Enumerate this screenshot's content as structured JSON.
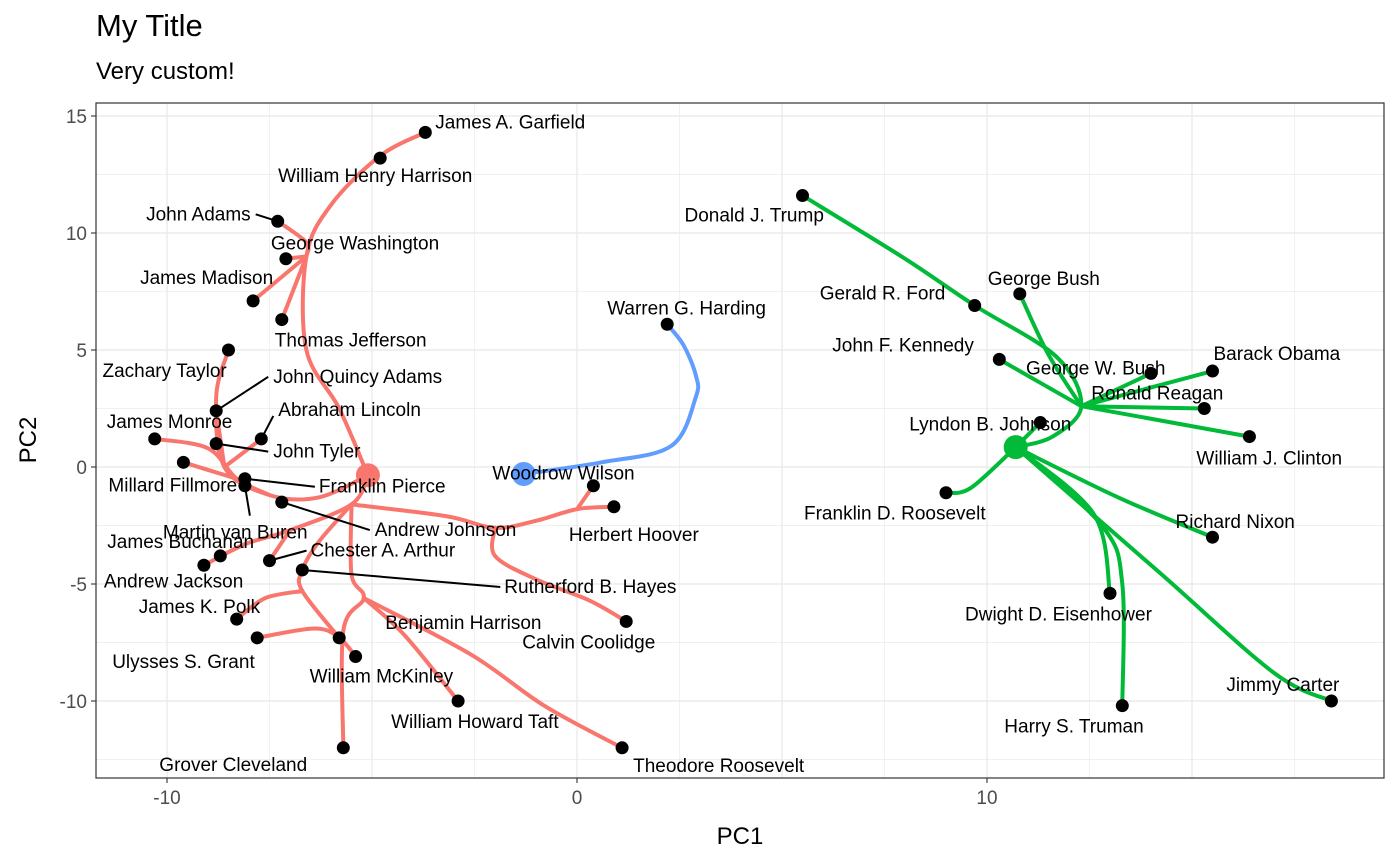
{
  "chart_data": {
    "type": "scatter",
    "title": "My Title",
    "subtitle": "Very custom!",
    "xlabel": "PC1",
    "ylabel": "PC2",
    "xlim": [
      -11.9,
      19.5
    ],
    "ylim": [
      -13.3,
      15.8
    ],
    "xticks": [
      -10,
      0,
      10
    ],
    "yticks": [
      -10,
      -5,
      0,
      5,
      10,
      15
    ],
    "grid": true,
    "legend": "none",
    "cluster_colors": {
      "red": "#F8766D",
      "green": "#00BA38",
      "blue": "#619CFF"
    },
    "cluster_centers": [
      {
        "cluster": "red",
        "x": -5.1,
        "y": -0.35
      },
      {
        "cluster": "blue",
        "x": -1.3,
        "y": -0.3
      },
      {
        "cluster": "green",
        "x": 10.7,
        "y": 0.85
      }
    ],
    "points": [
      {
        "name": "James A. Garfield",
        "x": -3.7,
        "y": 14.3
      },
      {
        "name": "William Henry Harrison",
        "x": -4.8,
        "y": 13.2
      },
      {
        "name": "John Adams",
        "x": -7.3,
        "y": 10.5
      },
      {
        "name": "George Washington",
        "x": -7.1,
        "y": 8.9
      },
      {
        "name": "James Madison",
        "x": -7.9,
        "y": 7.1
      },
      {
        "name": "Thomas Jefferson",
        "x": -7.2,
        "y": 6.3
      },
      {
        "name": "Zachary Taylor",
        "x": -8.5,
        "y": 5.0
      },
      {
        "name": "John Quincy Adams",
        "x": -8.8,
        "y": 2.4
      },
      {
        "name": "Abraham Lincoln",
        "x": -7.7,
        "y": 1.2
      },
      {
        "name": "James Monroe",
        "x": -10.3,
        "y": 1.2
      },
      {
        "name": "John Tyler",
        "x": -8.8,
        "y": 1.0
      },
      {
        "name": "Millard Fillmore",
        "x": -9.6,
        "y": 0.2
      },
      {
        "name": "Franklin Pierce",
        "x": -8.1,
        "y": -0.5
      },
      {
        "name": "Martin van Buren",
        "x": -8.1,
        "y": -0.8
      },
      {
        "name": "Andrew Johnson",
        "x": -7.2,
        "y": -1.5
      },
      {
        "name": "James Buchanan",
        "x": -8.7,
        "y": -3.8
      },
      {
        "name": "Andrew Jackson",
        "x": -9.1,
        "y": -4.2
      },
      {
        "name": "Chester A. Arthur",
        "x": -7.5,
        "y": -4.0
      },
      {
        "name": "Rutherford B. Hayes",
        "x": -6.7,
        "y": -4.4
      },
      {
        "name": "James K. Polk",
        "x": -8.3,
        "y": -6.5
      },
      {
        "name": "Ulysses S. Grant",
        "x": -7.8,
        "y": -7.3
      },
      {
        "name": "Benjamin Harrison",
        "x": -5.8,
        "y": -7.3
      },
      {
        "name": "William McKinley",
        "x": -5.4,
        "y": -8.1
      },
      {
        "name": "William Howard Taft",
        "x": -2.9,
        "y": -10.0
      },
      {
        "name": "Grover Cleveland",
        "x": -5.7,
        "y": -12.0
      },
      {
        "name": "Theodore Roosevelt",
        "x": 1.1,
        "y": -12.0
      },
      {
        "name": "Calvin Coolidge",
        "x": 1.2,
        "y": -6.6
      },
      {
        "name": "Herbert Hoover",
        "x": 0.9,
        "y": -1.7
      },
      {
        "name": "Woodrow Wilson",
        "x": 0.4,
        "y": -0.8
      },
      {
        "name": "Warren G. Harding",
        "x": 2.2,
        "y": 6.1
      },
      {
        "name": "Donald J. Trump",
        "x": 5.5,
        "y": 11.6
      },
      {
        "name": "Gerald R. Ford",
        "x": 9.7,
        "y": 6.9
      },
      {
        "name": "George Bush",
        "x": 10.8,
        "y": 7.4
      },
      {
        "name": "John F. Kennedy",
        "x": 10.3,
        "y": 4.6
      },
      {
        "name": "George W. Bush",
        "x": 14.0,
        "y": 4.0
      },
      {
        "name": "Barack Obama",
        "x": 15.5,
        "y": 4.1
      },
      {
        "name": "Ronald Reagan",
        "x": 15.3,
        "y": 2.5
      },
      {
        "name": "Lyndon B. Johnson",
        "x": 11.3,
        "y": 1.9
      },
      {
        "name": "William J. Clinton",
        "x": 16.4,
        "y": 1.3
      },
      {
        "name": "Franklin D. Roosevelt",
        "x": 9.0,
        "y": -1.1
      },
      {
        "name": "Richard Nixon",
        "x": 15.5,
        "y": -3.0
      },
      {
        "name": "Dwight D. Eisenhower",
        "x": 13.0,
        "y": -5.4
      },
      {
        "name": "Harry S. Truman",
        "x": 13.3,
        "y": -10.2
      },
      {
        "name": "Jimmy Carter",
        "x": 18.4,
        "y": -10.0
      }
    ],
    "trajectories": [
      {
        "cluster": "red",
        "points": [
          [
            -3.7,
            14.3
          ],
          [
            -4.8,
            13.3
          ],
          [
            -6.0,
            11.2
          ],
          [
            -6.6,
            9.0
          ],
          [
            -6.6,
            5.0
          ],
          [
            -5.8,
            2.5
          ],
          [
            -5.1,
            -0.35
          ]
        ]
      },
      {
        "cluster": "red",
        "points": [
          [
            -7.3,
            10.5
          ],
          [
            -6.6,
            9.6
          ],
          [
            -6.6,
            9.0
          ]
        ]
      },
      {
        "cluster": "red",
        "points": [
          [
            -7.1,
            8.9
          ],
          [
            -6.6,
            9.0
          ]
        ]
      },
      {
        "cluster": "red",
        "points": [
          [
            -7.9,
            7.1
          ],
          [
            -6.6,
            9.0
          ]
        ]
      },
      {
        "cluster": "red",
        "points": [
          [
            -7.2,
            6.3
          ],
          [
            -6.6,
            9.0
          ]
        ]
      },
      {
        "cluster": "red",
        "points": [
          [
            -8.5,
            5.0
          ],
          [
            -8.8,
            3.0
          ],
          [
            -8.6,
            0.0
          ],
          [
            -7.5,
            -1.2
          ],
          [
            -6.3,
            -1.3
          ],
          [
            -5.1,
            -0.35
          ]
        ]
      },
      {
        "cluster": "red",
        "points": [
          [
            -8.8,
            2.4
          ],
          [
            -8.6,
            0.0
          ]
        ]
      },
      {
        "cluster": "red",
        "points": [
          [
            -7.7,
            1.2
          ],
          [
            -8.6,
            0.0
          ]
        ]
      },
      {
        "cluster": "red",
        "points": [
          [
            -10.3,
            1.2
          ],
          [
            -9.0,
            0.8
          ],
          [
            -8.3,
            -0.5
          ],
          [
            -7.5,
            -1.2
          ]
        ]
      },
      {
        "cluster": "red",
        "points": [
          [
            -9.6,
            0.2
          ],
          [
            -8.3,
            -0.5
          ]
        ]
      },
      {
        "cluster": "red",
        "points": [
          [
            -8.8,
            1.0
          ],
          [
            -8.6,
            0.0
          ]
        ]
      },
      {
        "cluster": "red",
        "points": [
          [
            -5.1,
            -0.35
          ],
          [
            -5.5,
            -1.6
          ],
          [
            -7.0,
            -2.7
          ],
          [
            -8.1,
            -3.3
          ],
          [
            -9.1,
            -4.2
          ]
        ]
      },
      {
        "cluster": "red",
        "points": [
          [
            -8.7,
            -3.8
          ],
          [
            -8.1,
            -3.3
          ]
        ]
      },
      {
        "cluster": "red",
        "points": [
          [
            -7.5,
            -4.0
          ],
          [
            -7.0,
            -2.7
          ]
        ]
      },
      {
        "cluster": "red",
        "points": [
          [
            -5.5,
            -1.6
          ],
          [
            -6.3,
            -3.2
          ],
          [
            -6.7,
            -4.4
          ],
          [
            -6.7,
            -5.3
          ],
          [
            -5.8,
            -7.3
          ]
        ]
      },
      {
        "cluster": "red",
        "points": [
          [
            -6.7,
            -5.3
          ],
          [
            -7.6,
            -5.6
          ],
          [
            -8.3,
            -6.5
          ]
        ]
      },
      {
        "cluster": "red",
        "points": [
          [
            -7.8,
            -7.3
          ],
          [
            -6.4,
            -6.9
          ],
          [
            -5.8,
            -7.3
          ],
          [
            -5.4,
            -8.1
          ]
        ]
      },
      {
        "cluster": "red",
        "points": [
          [
            -5.5,
            -1.6
          ],
          [
            -5.5,
            -4.6
          ],
          [
            -5.2,
            -5.6
          ],
          [
            -5.7,
            -7.0
          ],
          [
            -5.7,
            -12.0
          ]
        ]
      },
      {
        "cluster": "red",
        "points": [
          [
            -5.2,
            -5.6
          ],
          [
            -4.2,
            -7.2
          ],
          [
            -2.9,
            -10.0
          ]
        ]
      },
      {
        "cluster": "red",
        "points": [
          [
            -5.2,
            -5.6
          ],
          [
            -2.6,
            -8.0
          ],
          [
            -0.8,
            -10.2
          ],
          [
            1.1,
            -12.0
          ]
        ]
      },
      {
        "cluster": "red",
        "points": [
          [
            -5.5,
            -1.6
          ],
          [
            -3.2,
            -2.1
          ],
          [
            -2.0,
            -2.6
          ],
          [
            -1.0,
            -2.3
          ],
          [
            0.0,
            -1.8
          ],
          [
            0.9,
            -1.7
          ]
        ]
      },
      {
        "cluster": "red",
        "points": [
          [
            0.0,
            -1.8
          ],
          [
            0.4,
            -0.8
          ]
        ]
      },
      {
        "cluster": "red",
        "points": [
          [
            -2.0,
            -2.6
          ],
          [
            -2.0,
            -3.8
          ],
          [
            -1.0,
            -4.8
          ],
          [
            0.3,
            -5.7
          ],
          [
            1.2,
            -6.6
          ]
        ]
      },
      {
        "cluster": "blue",
        "points": [
          [
            -1.3,
            -0.3
          ],
          [
            0.6,
            0.2
          ],
          [
            2.3,
            0.9
          ],
          [
            2.9,
            3.0
          ],
          [
            2.9,
            3.9
          ],
          [
            2.6,
            5.2
          ],
          [
            2.2,
            6.1
          ]
        ]
      },
      {
        "cluster": "green",
        "points": [
          [
            10.7,
            0.85
          ],
          [
            11.6,
            1.3
          ],
          [
            12.3,
            2.6
          ],
          [
            11.7,
            4.7
          ],
          [
            9.7,
            6.9
          ],
          [
            8.0,
            8.9
          ],
          [
            5.5,
            11.6
          ]
        ]
      },
      {
        "cluster": "green",
        "points": [
          [
            12.3,
            2.6
          ],
          [
            11.5,
            4.8
          ],
          [
            10.8,
            7.4
          ]
        ]
      },
      {
        "cluster": "green",
        "points": [
          [
            12.3,
            2.6
          ],
          [
            10.3,
            4.6
          ]
        ]
      },
      {
        "cluster": "green",
        "points": [
          [
            12.3,
            2.6
          ],
          [
            14.0,
            4.0
          ]
        ]
      },
      {
        "cluster": "green",
        "points": [
          [
            12.3,
            2.6
          ],
          [
            15.5,
            4.1
          ]
        ]
      },
      {
        "cluster": "green",
        "points": [
          [
            12.3,
            2.6
          ],
          [
            15.3,
            2.5
          ]
        ]
      },
      {
        "cluster": "green",
        "points": [
          [
            12.3,
            2.6
          ],
          [
            16.4,
            1.3
          ]
        ]
      },
      {
        "cluster": "green",
        "points": [
          [
            10.7,
            0.85
          ],
          [
            9.6,
            -0.9
          ],
          [
            9.0,
            -1.1
          ]
        ]
      },
      {
        "cluster": "green",
        "points": [
          [
            11.3,
            1.9
          ],
          [
            10.7,
            0.85
          ]
        ]
      },
      {
        "cluster": "green",
        "points": [
          [
            10.7,
            0.85
          ],
          [
            13.2,
            -1.3
          ],
          [
            15.5,
            -3.0
          ]
        ]
      },
      {
        "cluster": "green",
        "points": [
          [
            10.7,
            0.85
          ],
          [
            12.6,
            -2.0
          ],
          [
            13.0,
            -5.4
          ]
        ]
      },
      {
        "cluster": "green",
        "points": [
          [
            10.7,
            0.85
          ],
          [
            12.8,
            -2.5
          ],
          [
            13.3,
            -5.0
          ],
          [
            13.3,
            -10.2
          ]
        ]
      },
      {
        "cluster": "green",
        "points": [
          [
            10.7,
            0.85
          ],
          [
            14.2,
            -4.5
          ],
          [
            17.0,
            -8.8
          ],
          [
            18.4,
            -10.0
          ]
        ]
      }
    ]
  }
}
